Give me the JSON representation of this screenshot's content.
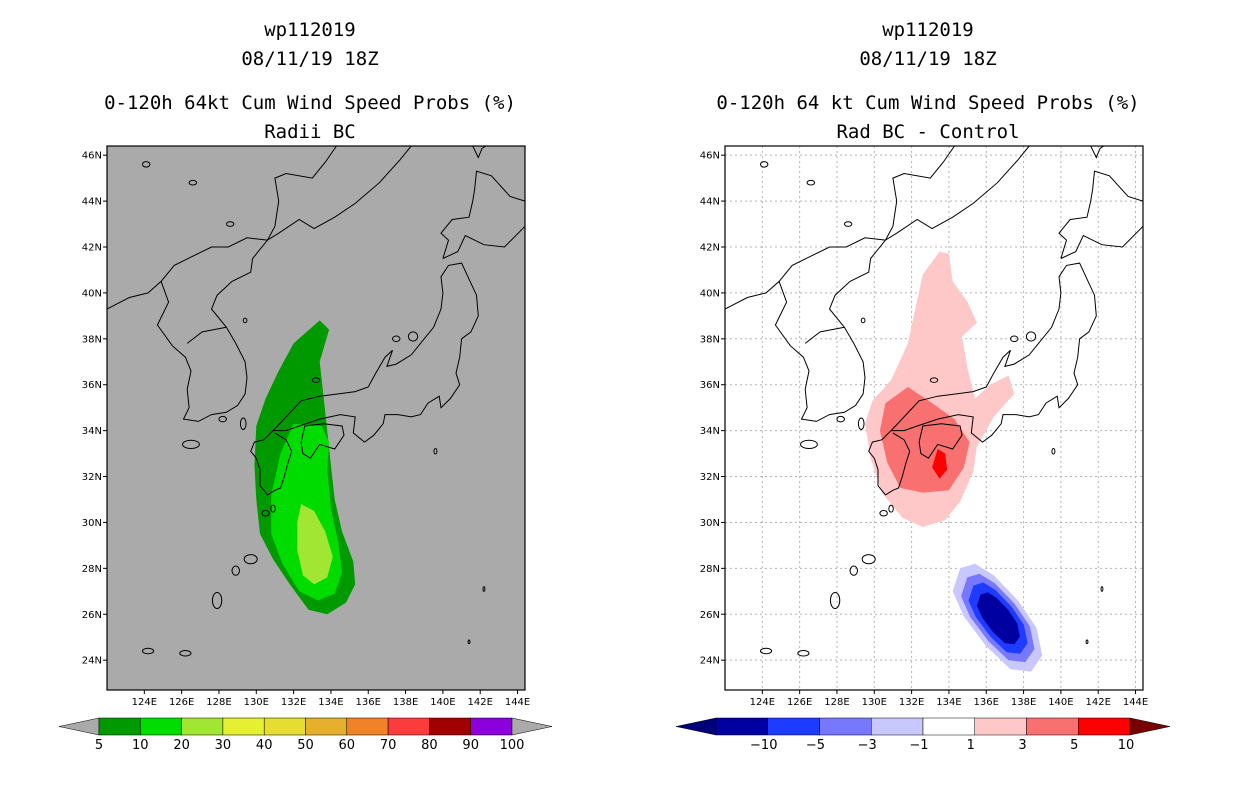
{
  "left_panel": {
    "title": [
      "wp112019",
      "08/11/19 18Z"
    ],
    "subtitle": [
      "0-120h 64kt Cum Wind Speed Probs (%)",
      "Radii BC"
    ],
    "background": "#aaaaaa",
    "colorbar": {
      "labels": [
        "5",
        "10",
        "20",
        "30",
        "40",
        "50",
        "60",
        "70",
        "80",
        "90",
        "100"
      ],
      "colors": [
        "#009a00",
        "#00dc00",
        "#a0e632",
        "#e6f032",
        "#e6dc32",
        "#e6af2d",
        "#f08228",
        "#fa3c3c",
        "#a00000",
        "#8c00dc"
      ],
      "arrow_color": "#aaaaaa"
    }
  },
  "right_panel": {
    "title": [
      "wp112019",
      "08/11/19 18Z"
    ],
    "subtitle": [
      "0-120h 64 kt Cum Wind Speed Probs (%)",
      "Rad BC - Control"
    ],
    "background": "#ffffff",
    "colorbar": {
      "labels": [
        "-10",
        "-5",
        "-3",
        "-1",
        "1",
        "3",
        "5",
        "10"
      ],
      "colors": [
        "#0000a0",
        "#1e3cff",
        "#7878ff",
        "#c8c8ff",
        "#ffffff",
        "#ffc8c8",
        "#f87070",
        "#ff0000"
      ],
      "left_arrow": "#000078",
      "right_arrow": "#780000"
    }
  },
  "axes": {
    "lat_labels": [
      "46N",
      "44N",
      "42N",
      "40N",
      "38N",
      "36N",
      "34N",
      "32N",
      "30N",
      "28N",
      "26N",
      "24N"
    ],
    "lon_labels": [
      "124E",
      "126E",
      "128E",
      "130E",
      "132E",
      "134E",
      "136E",
      "138E",
      "140E",
      "142E",
      "144E"
    ],
    "lat_range": [
      22.7,
      46.4
    ],
    "lon_range": [
      122.0,
      144.4
    ]
  },
  "contours_left": {
    "colors": [
      "#009a00",
      "#00dc00",
      "#a0e632"
    ],
    "values_pct": [
      5,
      10,
      20
    ]
  },
  "contours_right": {
    "pos_colors": [
      "#ffc8c8",
      "#f87070",
      "#ff0000"
    ],
    "neg_colors": [
      "#c8c8ff",
      "#7878ff",
      "#1e3cff",
      "#0000a0"
    ]
  }
}
